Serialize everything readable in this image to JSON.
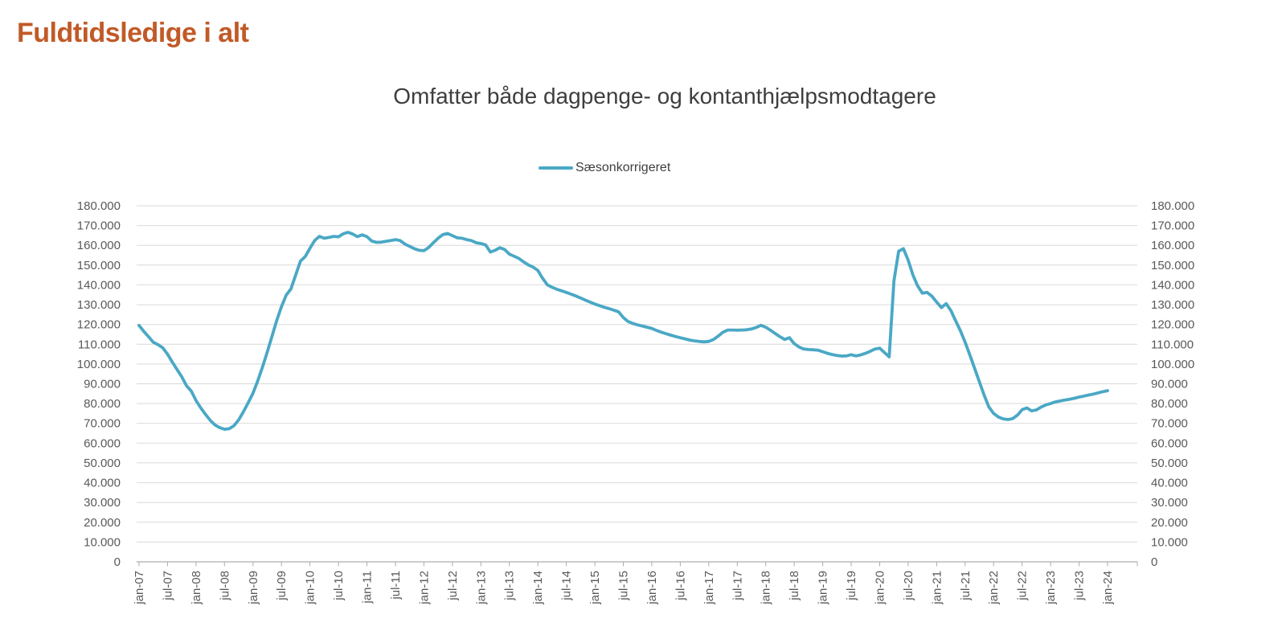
{
  "page": {
    "title": "Fuldtidsledige i alt"
  },
  "chart": {
    "subtitle": "Omfatter både dagpenge- og kontanthjælpsmodtagere",
    "legend_label": "Sæsonkorrigeret"
  },
  "colors": {
    "page_title": "#C15A27",
    "series_line": "#4AA8C5",
    "axis_text": "#595959",
    "chart_text": "#3E3E3E",
    "gridline": "#D9D9D9",
    "axis_line": "#ADADAD"
  },
  "axes": {
    "y_step": 10000,
    "y_left_labels": [
      "180.000",
      "170.000",
      "160.000",
      "150.000",
      "140.000",
      "130.000",
      "120.000",
      "110.000",
      "100.000",
      "90.000",
      "80.000",
      "70.000",
      "60.000",
      "50.000",
      "40.000",
      "30.000",
      "20.000",
      "10.000",
      "0"
    ],
    "y_right_labels": [
      "180.000",
      "170.000",
      "160.000",
      "150.000",
      "140.000",
      "130.000",
      "120.000",
      "110.000",
      "100.000",
      "90.000",
      "80.000",
      "70.000",
      "60.000",
      "50.000",
      "40.000",
      "30.000",
      "20.000",
      "10.000",
      "0"
    ],
    "x_labels": [
      "jan-07",
      "jul-07",
      "jan-08",
      "jul-08",
      "jan-09",
      "jul-09",
      "jan-10",
      "jul-10",
      "jan-11",
      "jul-11",
      "jan-12",
      "jul-12",
      "jan-13",
      "jul-13",
      "jan-14",
      "jul-14",
      "jan-15",
      "jul-15",
      "jan-16",
      "jul-16",
      "jan-17",
      "jul-17",
      "jan-18",
      "jul-18",
      "jan-19",
      "jul-19",
      "jan-20",
      "jul-20",
      "jan-21",
      "jul-21",
      "jan-22",
      "jul-22",
      "jan-23",
      "jul-23",
      "jan-24"
    ]
  },
  "chart_data": {
    "type": "line",
    "title": "Omfatter både dagpenge- og kontanthjælpsmodtagere",
    "xlabel": "",
    "ylabel": "",
    "ylim": [
      0,
      180000
    ],
    "y_tick_step": 10000,
    "grid": true,
    "legend_position": "top-center",
    "x_start": "jan-07",
    "x_end": "jan-24",
    "frequency": "monthly",
    "x_tick_labels": [
      "jan-07",
      "jul-07",
      "jan-08",
      "jul-08",
      "jan-09",
      "jul-09",
      "jan-10",
      "jul-10",
      "jan-11",
      "jul-11",
      "jan-12",
      "jul-12",
      "jan-13",
      "jul-13",
      "jan-14",
      "jul-14",
      "jan-15",
      "jul-15",
      "jan-16",
      "jul-16",
      "jan-17",
      "jul-17",
      "jan-18",
      "jul-18",
      "jan-19",
      "jul-19",
      "jan-20",
      "jul-20",
      "jan-21",
      "jul-21",
      "jan-22",
      "jul-22",
      "jan-23",
      "jul-23",
      "jan-24"
    ],
    "series": [
      {
        "name": "Sæsonkorrigeret",
        "color": "#4AA8C5",
        "values": [
          119500,
          116500,
          113800,
          111000,
          109800,
          108200,
          105000,
          101000,
          97200,
          93500,
          89000,
          86300,
          81500,
          77800,
          74500,
          71500,
          69200,
          67800,
          67000,
          67300,
          68800,
          71800,
          76000,
          80500,
          85300,
          91500,
          98500,
          106000,
          114000,
          122000,
          129000,
          134800,
          138000,
          145000,
          152000,
          154300,
          158500,
          162500,
          164500,
          163600,
          164000,
          164500,
          164300,
          165800,
          166600,
          165700,
          164400,
          165300,
          164400,
          162200,
          161500,
          161600,
          162000,
          162400,
          162900,
          162400,
          160600,
          159500,
          158300,
          157500,
          157300,
          158900,
          161300,
          163600,
          165400,
          166000,
          164900,
          163800,
          163600,
          162900,
          162400,
          161300,
          160900,
          160200,
          156600,
          157500,
          158800,
          157900,
          155600,
          154500,
          153400,
          151600,
          150100,
          149000,
          147300,
          143300,
          140000,
          138800,
          137800,
          137000,
          136200,
          135300,
          134400,
          133400,
          132300,
          131300,
          130300,
          129500,
          128700,
          128000,
          127200,
          126400,
          123500,
          121500,
          120500,
          119800,
          119200,
          118600,
          118000,
          117000,
          116100,
          115300,
          114600,
          113900,
          113300,
          112700,
          112100,
          111700,
          111400,
          111200,
          111400,
          112400,
          114100,
          116100,
          117200,
          117200,
          117100,
          117200,
          117300,
          117700,
          118500,
          119600,
          118600,
          117100,
          115400,
          113800,
          112400,
          113300,
          110300,
          108600,
          107600,
          107300,
          107200,
          107000,
          106200,
          105400,
          104800,
          104300,
          104000,
          104100,
          104700,
          104100,
          104600,
          105400,
          106400,
          107600,
          108000,
          105800,
          103600,
          142000,
          157000,
          158300,
          152500,
          145000,
          139500,
          135800,
          136200,
          134300,
          131300,
          128500,
          130500,
          127000,
          121800,
          116800,
          111000,
          104500,
          97800,
          91000,
          84300,
          78300,
          75000,
          73200,
          72300,
          71900,
          72400,
          74100,
          76900,
          77800,
          76300,
          76800,
          78200,
          79300,
          80000,
          80800,
          81300,
          81800,
          82200,
          82700,
          83300,
          83800,
          84300,
          84800,
          85400,
          86000,
          86500
        ]
      }
    ]
  }
}
